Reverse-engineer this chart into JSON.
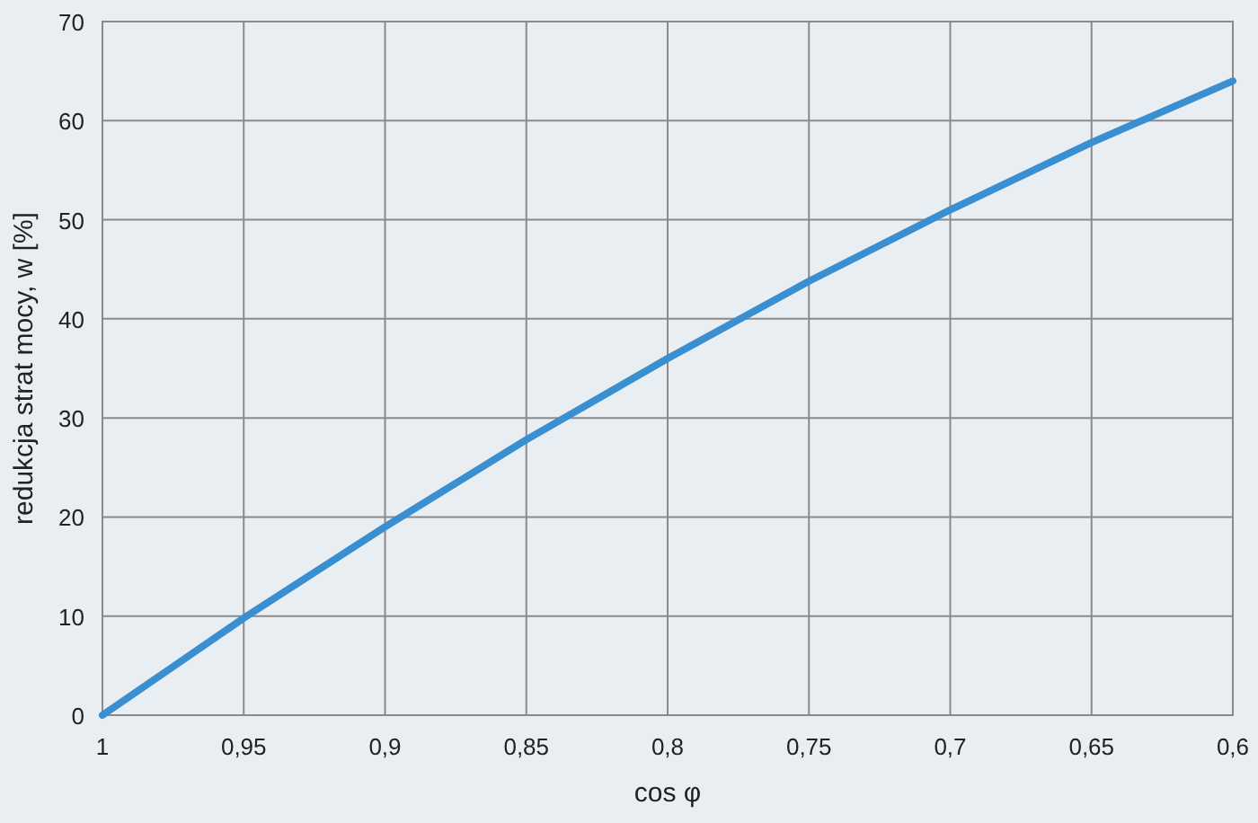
{
  "chart_data": {
    "type": "line",
    "xlabel": "cos φ",
    "ylabel": "redukcja strat mocy, w [%]",
    "x": [
      1,
      0.975,
      0.95,
      0.925,
      0.9,
      0.875,
      0.85,
      0.825,
      0.8,
      0.775,
      0.75,
      0.725,
      0.7,
      0.675,
      0.65,
      0.625,
      0.6
    ],
    "series": [
      {
        "color": "#3a8fd0",
        "values": [
          0,
          4.9,
          9.8,
          14.4,
          19,
          23.4,
          27.8,
          31.9,
          36,
          39.9,
          43.8,
          47.4,
          51,
          54.4,
          57.8,
          60.9,
          64
        ]
      }
    ],
    "xlim": [
      1,
      0.6
    ],
    "xticks": [
      1,
      {
        "value": 0.95,
        "label": "0,95"
      },
      {
        "value": 0.9,
        "label": "0,9"
      },
      {
        "value": 0.85,
        "label": "0,85"
      },
      {
        "value": 0.8,
        "label": "0,8"
      },
      {
        "value": 0.75,
        "label": "0,75"
      },
      {
        "value": 0.7,
        "label": "0,7"
      },
      {
        "value": 0.65,
        "label": "0,65"
      },
      {
        "value": 0.6,
        "label": "0,6"
      }
    ],
    "ylim": [
      0,
      70
    ],
    "yticks": [
      0,
      10,
      20,
      30,
      40,
      50,
      60,
      70
    ],
    "grid": true,
    "marker": "none",
    "line_style": "solid"
  }
}
